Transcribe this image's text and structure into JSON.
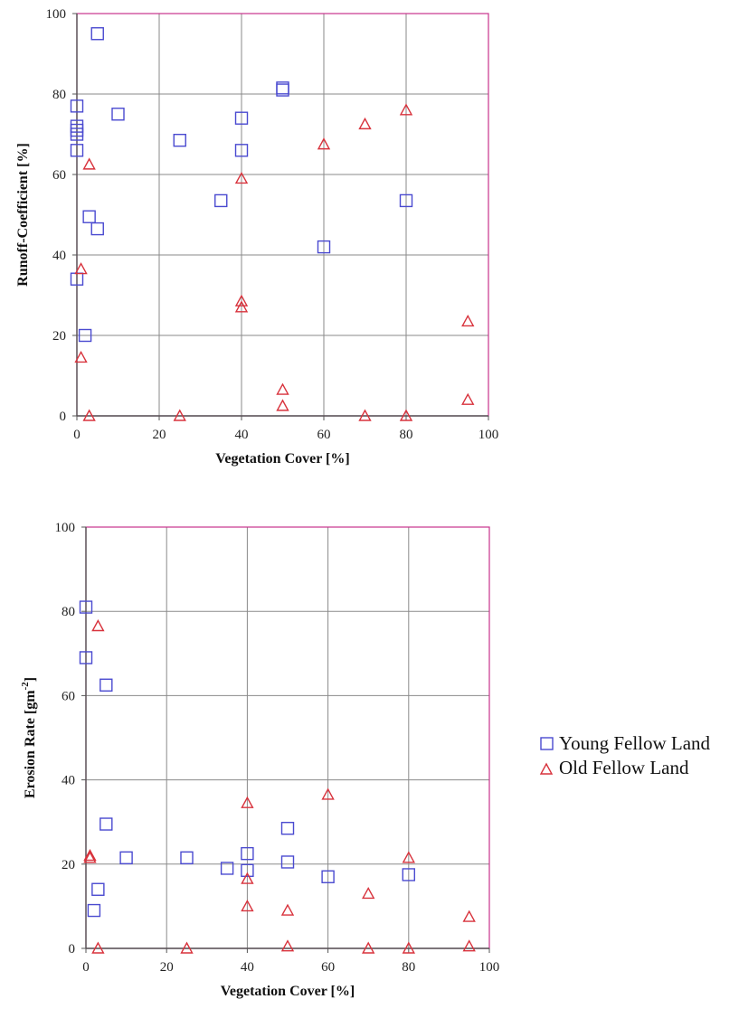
{
  "legend": {
    "items": [
      {
        "label": "Young Fellow Land",
        "marker": "square",
        "color": "#4a4ad0"
      },
      {
        "label": "Old Fellow Land",
        "marker": "triangle",
        "color": "#d8323c"
      }
    ]
  },
  "chart_data": [
    {
      "type": "scatter",
      "title": "",
      "xlabel": "Vegetation Cover [%]",
      "ylabel": "Runoff-Coefficient [%]",
      "xlim": [
        0,
        100
      ],
      "ylim": [
        0,
        100
      ],
      "xticks": [
        0,
        20,
        40,
        60,
        80,
        100
      ],
      "yticks": [
        0,
        20,
        40,
        60,
        80,
        100
      ],
      "grid": true,
      "series": [
        {
          "name": "Young Fellow Land",
          "marker": "square",
          "color": "#4a4ad0",
          "points": [
            [
              5,
              95
            ],
            [
              0,
              77
            ],
            [
              0,
              72
            ],
            [
              0,
              71
            ],
            [
              0,
              70
            ],
            [
              0,
              66
            ],
            [
              10,
              75
            ],
            [
              25,
              68.5
            ],
            [
              40,
              74
            ],
            [
              40,
              66
            ],
            [
              50,
              81.5
            ],
            [
              50,
              81
            ],
            [
              35,
              53.5
            ],
            [
              3,
              49.5
            ],
            [
              5,
              46.5
            ],
            [
              60,
              42
            ],
            [
              80,
              53.5
            ],
            [
              0,
              34
            ],
            [
              2,
              20
            ]
          ]
        },
        {
          "name": "Old Fellow Land",
          "marker": "triangle",
          "color": "#d8323c",
          "points": [
            [
              3,
              62.5
            ],
            [
              1,
              36.5
            ],
            [
              1,
              14.5
            ],
            [
              3,
              0
            ],
            [
              25,
              0
            ],
            [
              40,
              59
            ],
            [
              40,
              28.5
            ],
            [
              40,
              27
            ],
            [
              50,
              6.5
            ],
            [
              50,
              2.5
            ],
            [
              60,
              67.5
            ],
            [
              70,
              72.5
            ],
            [
              80,
              76
            ],
            [
              70,
              0
            ],
            [
              80,
              0
            ],
            [
              95,
              23.5
            ],
            [
              95,
              4
            ]
          ]
        }
      ]
    },
    {
      "type": "scatter",
      "title": "",
      "xlabel": "Vegetation Cover [%]",
      "ylabel": "Erosion Rate [gm",
      "ylabel_sup": "-2",
      "ylabel_suffix": "]",
      "xlim": [
        0,
        100
      ],
      "ylim": [
        0,
        100
      ],
      "xticks": [
        0,
        20,
        40,
        60,
        80,
        100
      ],
      "yticks": [
        0,
        20,
        40,
        60,
        80,
        100
      ],
      "grid": true,
      "series": [
        {
          "name": "Young Fellow Land",
          "marker": "square",
          "color": "#4a4ad0",
          "points": [
            [
              0,
              81
            ],
            [
              0,
              69
            ],
            [
              5,
              62.5
            ],
            [
              5,
              29.5
            ],
            [
              10,
              21.5
            ],
            [
              25,
              21.5
            ],
            [
              35,
              19
            ],
            [
              40,
              22.5
            ],
            [
              40,
              18.5
            ],
            [
              50,
              28.5
            ],
            [
              50,
              20.5
            ],
            [
              60,
              17
            ],
            [
              80,
              17.5
            ],
            [
              3,
              14
            ],
            [
              2,
              9
            ]
          ]
        },
        {
          "name": "Old Fellow Land",
          "marker": "triangle",
          "color": "#d8323c",
          "points": [
            [
              3,
              76.5
            ],
            [
              1,
              22
            ],
            [
              1,
              21.5
            ],
            [
              3,
              0
            ],
            [
              25,
              0
            ],
            [
              40,
              34.5
            ],
            [
              40,
              16.5
            ],
            [
              40,
              10
            ],
            [
              50,
              9
            ],
            [
              50,
              0.5
            ],
            [
              60,
              36.5
            ],
            [
              70,
              13
            ],
            [
              70,
              0
            ],
            [
              80,
              21.5
            ],
            [
              80,
              0
            ],
            [
              95,
              7.5
            ],
            [
              95,
              0.5
            ]
          ]
        }
      ]
    }
  ]
}
